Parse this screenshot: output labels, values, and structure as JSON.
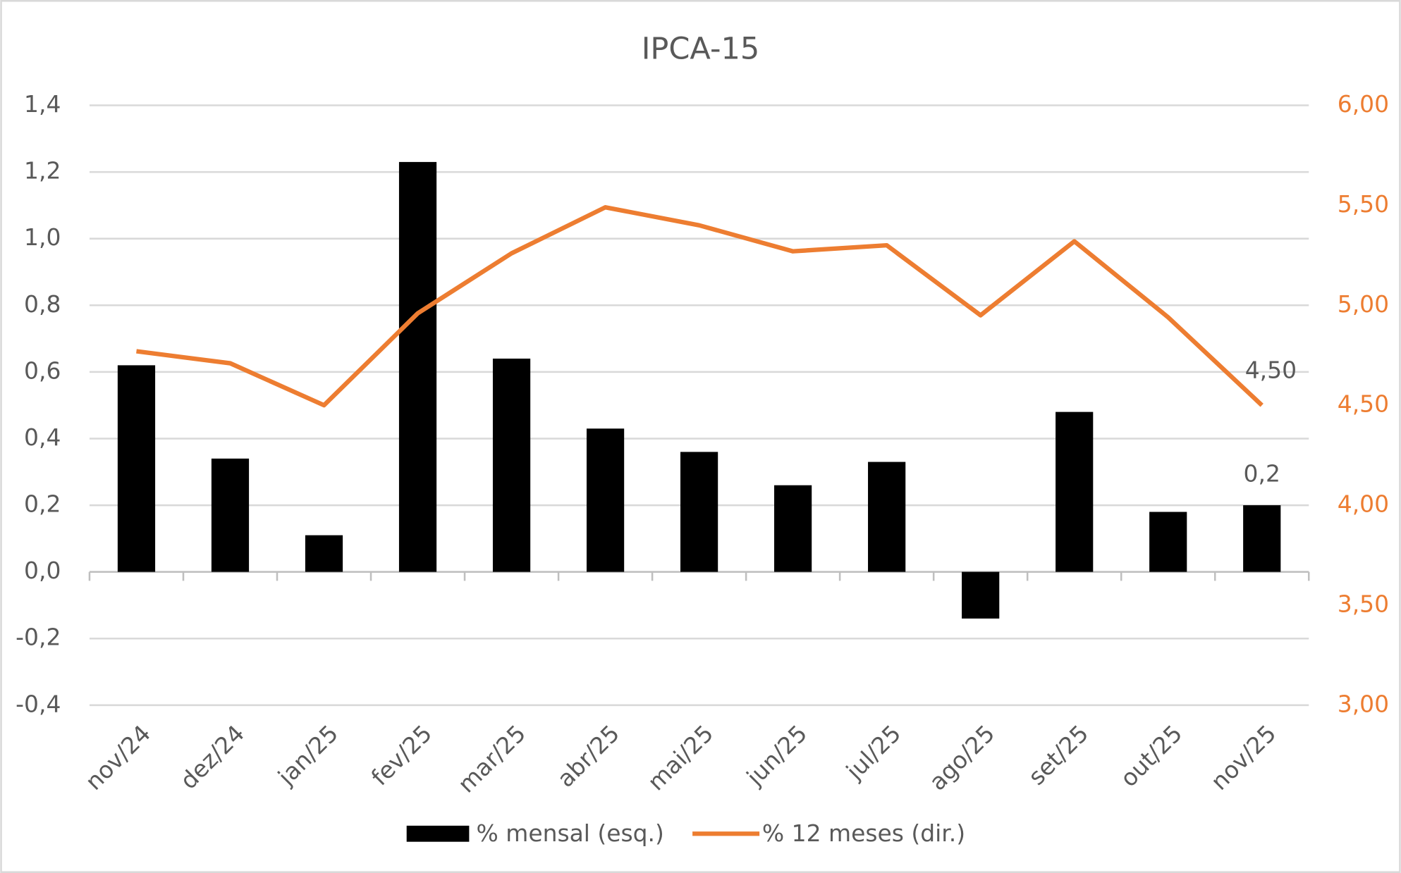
{
  "chart_data": {
    "type": "bar",
    "title": "IPCA-15",
    "categories": [
      "nov/24",
      "dez/24",
      "jan/25",
      "fev/25",
      "mar/25",
      "abr/25",
      "mai/25",
      "jun/25",
      "jul/25",
      "ago/25",
      "set/25",
      "out/25",
      "nov/25"
    ],
    "series": [
      {
        "name": "% mensal (esq.)",
        "type": "bar",
        "color": "#000000",
        "values": [
          0.62,
          0.34,
          0.11,
          1.23,
          0.64,
          0.43,
          0.36,
          0.26,
          0.33,
          -0.14,
          0.48,
          0.18,
          0.2
        ],
        "value_labels": [
          null,
          null,
          null,
          null,
          null,
          null,
          null,
          null,
          null,
          null,
          null,
          null,
          "0,2"
        ]
      },
      {
        "name": "% 12 meses (dir.)",
        "type": "line",
        "axis": "y2",
        "color": "#ED7D31",
        "values": [
          4.77,
          4.71,
          4.5,
          4.96,
          5.26,
          5.49,
          5.4,
          5.27,
          5.3,
          4.95,
          5.32,
          4.94,
          4.5
        ],
        "value_labels": [
          null,
          null,
          null,
          null,
          null,
          null,
          null,
          null,
          null,
          null,
          null,
          null,
          "4,50"
        ]
      }
    ],
    "ylim": [
      -0.4,
      1.4
    ],
    "yticks": [
      {
        "value": -0.4,
        "label": "-0,4"
      },
      {
        "value": -0.2,
        "label": "-0,2"
      },
      {
        "value": 0,
        "label": "0,0"
      },
      {
        "value": 0.2,
        "label": "0,2"
      },
      {
        "value": 0.4,
        "label": "0,4"
      },
      {
        "value": 0.6,
        "label": "0,6"
      },
      {
        "value": 0.8,
        "label": "0,8"
      },
      {
        "value": 1.0,
        "label": "1,0"
      },
      {
        "value": 1.2,
        "label": "1,2"
      },
      {
        "value": 1.4,
        "label": "1,4"
      }
    ],
    "y2lim": [
      3.0,
      6.0
    ],
    "y2ticks": [
      {
        "value": 3.0,
        "label": "3,00"
      },
      {
        "value": 3.5,
        "label": "3,50"
      },
      {
        "value": 4.0,
        "label": "4,00"
      },
      {
        "value": 4.5,
        "label": "4,50"
      },
      {
        "value": 5.0,
        "label": "5,00"
      },
      {
        "value": 5.5,
        "label": "5,50"
      },
      {
        "value": 6.0,
        "label": "6,00"
      }
    ],
    "grid": true,
    "legend": "bottom"
  }
}
